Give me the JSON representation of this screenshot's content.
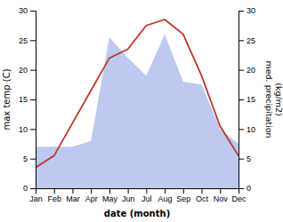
{
  "chart_data": {
    "type": "line",
    "xlabel": "date (month)",
    "ylabel": "max temp (C)",
    "y2label": "med. precipitation\n(kg/m2)",
    "categories": [
      "Jan",
      "Feb",
      "Mar",
      "Apr",
      "May",
      "Jun",
      "Jul",
      "Aug",
      "Sep",
      "Oct",
      "Nov",
      "Dec"
    ],
    "series": [
      {
        "type": "area",
        "color": "#bdc9f0",
        "axis": "y2",
        "values": [
          7.0,
          7.0,
          7.0,
          8.0,
          25.5,
          22.0,
          19.0,
          26.0,
          18.0,
          17.5,
          10.0,
          7.5
        ]
      },
      {
        "type": "line",
        "color": "#c0392b",
        "values": [
          3.5,
          5.5,
          11.0,
          16.5,
          22.0,
          23.5,
          27.5,
          28.5,
          26.0,
          19.0,
          10.5,
          5.5
        ]
      }
    ],
    "ylim": [
      0,
      30
    ],
    "yticks": [
      0,
      5,
      10,
      15,
      20,
      25,
      30
    ],
    "y2lim": [
      0,
      30
    ],
    "y2ticks": [
      0,
      5,
      10,
      15,
      20,
      25,
      30
    ],
    "grid": false
  }
}
